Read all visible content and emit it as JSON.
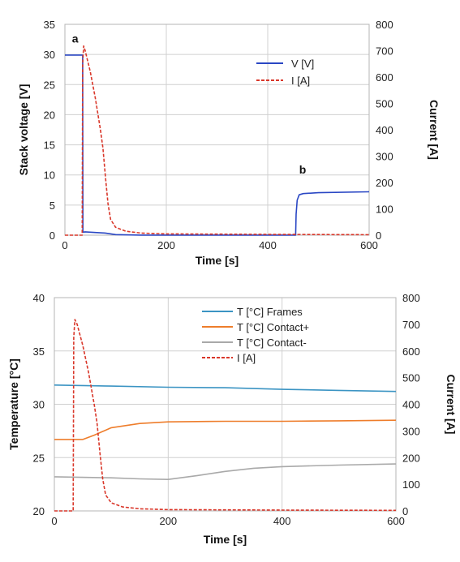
{
  "chart_data": [
    {
      "type": "line",
      "xlabel": "Time [s]",
      "ylabel": "Stack voltage [V]",
      "y2label": "Current [A]",
      "xlim": [
        0,
        600
      ],
      "ylim": [
        0,
        35
      ],
      "y2lim": [
        0,
        800
      ],
      "xticks": [
        "0",
        "200",
        "400",
        "600"
      ],
      "yticks": [
        "0",
        "5",
        "10",
        "15",
        "20",
        "25",
        "30",
        "35"
      ],
      "y2ticks": [
        "0",
        "100",
        "200",
        "300",
        "400",
        "500",
        "600",
        "700",
        "800"
      ],
      "grid": true,
      "legend_position": "top-right",
      "annotations": [
        {
          "text": "a",
          "x": 14,
          "y": 32
        },
        {
          "text": "b",
          "x": 462,
          "y": 10.2
        }
      ],
      "series": [
        {
          "name": "V [V]",
          "axis": "left",
          "color": "#2a47c4",
          "style": "solid",
          "points": [
            [
              0,
              29.9
            ],
            [
              35,
              29.9
            ],
            [
              35.5,
              0.5
            ],
            [
              40,
              0.55
            ],
            [
              60,
              0.45
            ],
            [
              80,
              0.35
            ],
            [
              100,
              0.1
            ],
            [
              150,
              0.02
            ],
            [
              300,
              0.02
            ],
            [
              455,
              0.02
            ],
            [
              456,
              3.5
            ],
            [
              458,
              5.8
            ],
            [
              462,
              6.7
            ],
            [
              470,
              6.9
            ],
            [
              500,
              7.05
            ],
            [
              600,
              7.2
            ]
          ]
        },
        {
          "name": "I [A]",
          "axis": "right",
          "color": "#d9372a",
          "style": "dashed",
          "points": [
            [
              0,
              0
            ],
            [
              34,
              0
            ],
            [
              35,
              650
            ],
            [
              37,
              718
            ],
            [
              40,
              700
            ],
            [
              50,
              620
            ],
            [
              60,
              520
            ],
            [
              70,
              400
            ],
            [
              75,
              330
            ],
            [
              80,
              220
            ],
            [
              85,
              120
            ],
            [
              90,
              60
            ],
            [
              100,
              30
            ],
            [
              120,
              15
            ],
            [
              150,
              8
            ],
            [
              200,
              5
            ],
            [
              300,
              4
            ],
            [
              400,
              3
            ],
            [
              600,
              2
            ]
          ]
        }
      ]
    },
    {
      "type": "line",
      "xlabel": "Time [s]",
      "ylabel": "Temperature [°C]",
      "y2label": "Current [A]",
      "xlim": [
        0,
        600
      ],
      "ylim": [
        20,
        40
      ],
      "y2lim": [
        0,
        800
      ],
      "xticks": [
        "0",
        "200",
        "400",
        "600"
      ],
      "yticks": [
        "20",
        "25",
        "30",
        "35",
        "40"
      ],
      "y2ticks": [
        "0",
        "100",
        "200",
        "300",
        "400",
        "500",
        "600",
        "700",
        "800"
      ],
      "grid": true,
      "legend_position": "top-right",
      "series": [
        {
          "name": "T [°C] Frames",
          "axis": "left",
          "color": "#3b94c3",
          "style": "solid",
          "points": [
            [
              0,
              31.8
            ],
            [
              100,
              31.7
            ],
            [
              200,
              31.6
            ],
            [
              300,
              31.55
            ],
            [
              400,
              31.4
            ],
            [
              500,
              31.3
            ],
            [
              600,
              31.2
            ]
          ]
        },
        {
          "name": "T [°C] Contact+",
          "axis": "left",
          "color": "#ee7d2b",
          "style": "solid",
          "points": [
            [
              0,
              26.7
            ],
            [
              50,
              26.7
            ],
            [
              70,
              27.1
            ],
            [
              100,
              27.8
            ],
            [
              150,
              28.2
            ],
            [
              200,
              28.35
            ],
            [
              300,
              28.4
            ],
            [
              400,
              28.4
            ],
            [
              500,
              28.45
            ],
            [
              600,
              28.5
            ]
          ]
        },
        {
          "name": "T [°C] Contact-",
          "axis": "left",
          "color": "#a9a9a9",
          "style": "solid",
          "points": [
            [
              0,
              23.2
            ],
            [
              100,
              23.1
            ],
            [
              150,
              23.0
            ],
            [
              200,
              22.95
            ],
            [
              250,
              23.3
            ],
            [
              300,
              23.7
            ],
            [
              350,
              24.0
            ],
            [
              400,
              24.15
            ],
            [
              500,
              24.3
            ],
            [
              600,
              24.4
            ]
          ]
        },
        {
          "name": "I [A]",
          "axis": "right",
          "color": "#d9372a",
          "style": "dashed",
          "points": [
            [
              0,
              0
            ],
            [
              33,
              0
            ],
            [
              34,
              650
            ],
            [
              36,
              718
            ],
            [
              40,
              700
            ],
            [
              50,
              620
            ],
            [
              60,
              520
            ],
            [
              70,
              400
            ],
            [
              75,
              330
            ],
            [
              80,
              220
            ],
            [
              85,
              120
            ],
            [
              90,
              60
            ],
            [
              100,
              30
            ],
            [
              120,
              15
            ],
            [
              150,
              8
            ],
            [
              200,
              5
            ],
            [
              300,
              4
            ],
            [
              400,
              3
            ],
            [
              600,
              2
            ]
          ]
        }
      ]
    }
  ]
}
